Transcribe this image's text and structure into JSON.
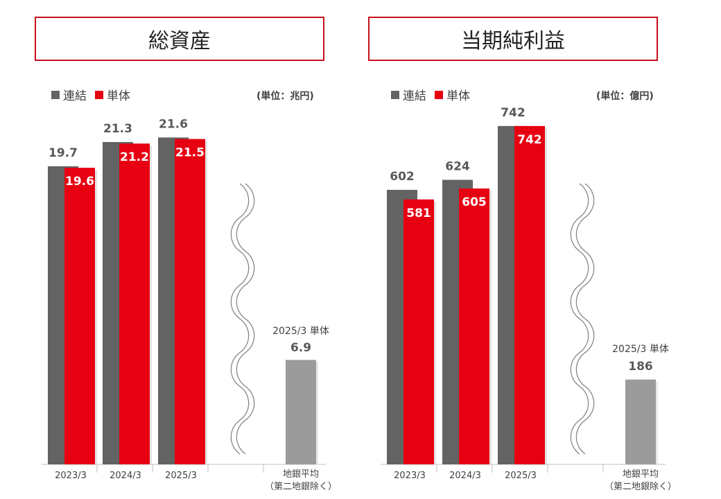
{
  "colors": {
    "consolidated": "#636363",
    "standalone": "#e60012",
    "average": "#9b9b9b",
    "title_border": "#c8101e"
  },
  "legend": {
    "consolidated": "連結",
    "standalone": "単体"
  },
  "chart_data": [
    {
      "type": "bar",
      "title": "総資産",
      "unit": "(単位：兆円)",
      "categories": [
        "2023/3",
        "2024/3",
        "2025/3"
      ],
      "series": [
        {
          "name": "連結",
          "values": [
            19.7,
            21.3,
            21.6
          ],
          "labels": [
            "19.7",
            "21.3",
            "21.6"
          ]
        },
        {
          "name": "単体",
          "values": [
            19.6,
            21.2,
            21.5
          ],
          "labels": [
            "19.6",
            "21.2",
            "21.5"
          ]
        }
      ],
      "scale_max": 22.9,
      "average": {
        "caption": "2025/3 単体",
        "value": 6.9,
        "label": "6.9",
        "category_line1": "地銀平均",
        "category_line2": "（第二地銀除く）"
      }
    },
    {
      "type": "bar",
      "title": "当期純利益",
      "unit": "(単位：億円)",
      "categories": [
        "2023/3",
        "2024/3",
        "2025/3"
      ],
      "series": [
        {
          "name": "連結",
          "values": [
            602,
            624,
            742
          ],
          "labels": [
            "602",
            "624",
            "742"
          ]
        },
        {
          "name": "単体",
          "values": [
            581,
            605,
            742
          ],
          "labels": [
            "581",
            "605",
            "742"
          ]
        }
      ],
      "scale_max": 760,
      "average": {
        "caption": "2025/3 単体",
        "value": 186,
        "label": "186",
        "category_line1": "地銀平均",
        "category_line2": "（第二地銀除く）"
      }
    }
  ]
}
